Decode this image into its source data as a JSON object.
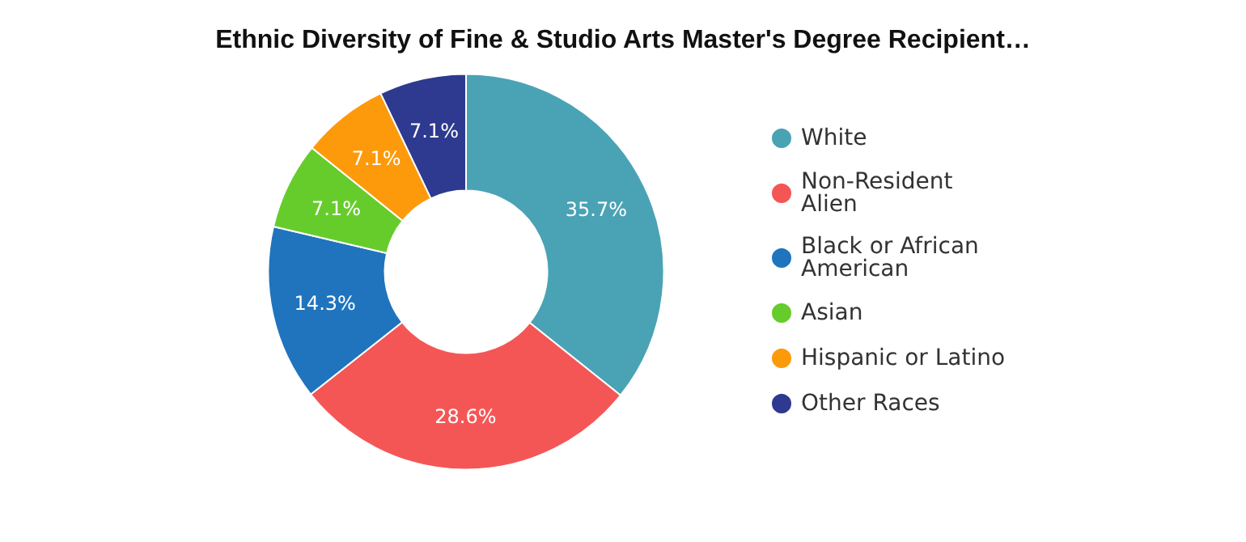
{
  "chart_data": {
    "type": "donut",
    "title": "Ethnic Diversity of Fine & Studio Arts Master's Degree Recipient…",
    "categories": [
      "White",
      "Non-Resident Alien",
      "Black or African American",
      "Asian",
      "Hispanic or Latino",
      "Other Races"
    ],
    "values": [
      35.7,
      28.6,
      14.3,
      7.1,
      7.1,
      7.1
    ],
    "colors": [
      "#4aa3b5",
      "#f45656",
      "#1f74bd",
      "#66cc2c",
      "#fd9a0c",
      "#2e3a8f"
    ],
    "value_labels": [
      "35.7%",
      "28.6%",
      "14.3%",
      "7.1%",
      "7.1%",
      "7.1%"
    ],
    "legend": "right"
  }
}
